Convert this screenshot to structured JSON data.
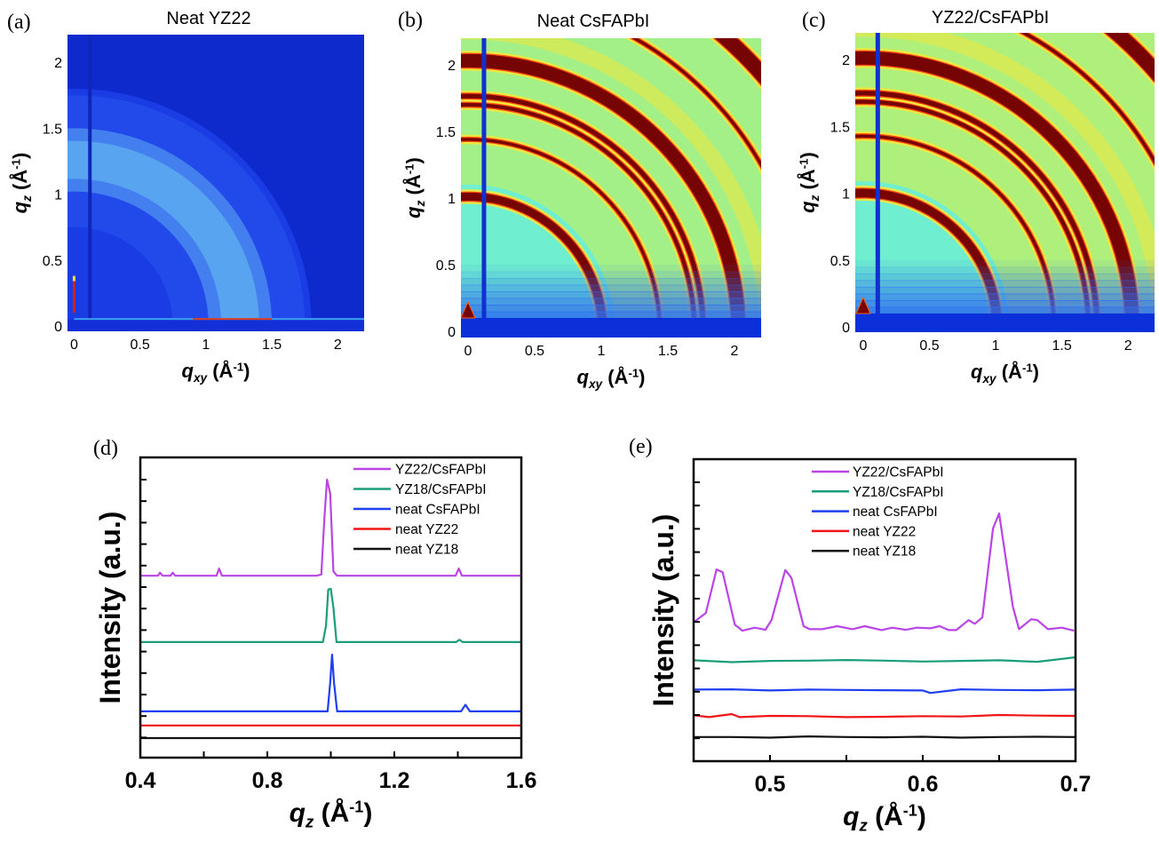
{
  "chart_data": [
    {
      "type": "heatmap",
      "panel_label": "(a)",
      "title": "Neat YZ22",
      "xlabel": {
        "symbol": "q",
        "sub": "xy",
        "unit": "Å",
        "exp": "-1"
      },
      "ylabel": {
        "symbol": "q",
        "sub": "z",
        "unit": "Å",
        "exp": "-1"
      },
      "x_ticks": [
        "0",
        "0.5",
        "1",
        "1.5",
        "2"
      ],
      "y_ticks": [
        "0",
        "0.5",
        "1",
        "1.5",
        "2"
      ],
      "xlim": [
        -0.05,
        2.2
      ],
      "ylim": [
        -0.04,
        2.21
      ],
      "colormap": {
        "background": "#1a3ce4",
        "low": "#0b24c4",
        "diffuse": "#6cc2f2"
      },
      "diffuse_ring_q": [
        1.02,
        1.5
      ],
      "rings": [],
      "beamstop_qxy": 0.12
    },
    {
      "type": "heatmap",
      "panel_label": "(b)",
      "title": "Neat CsFAPbI",
      "xlabel": {
        "symbol": "q",
        "sub": "xy",
        "unit": "Å",
        "exp": "-1"
      },
      "ylabel": {
        "symbol": "q",
        "sub": "z",
        "unit": "Å",
        "exp": "-1"
      },
      "x_ticks": [
        "0",
        "0.5",
        "1",
        "1.5",
        "2"
      ],
      "y_ticks": [
        "0",
        "0.5",
        "1",
        "1.5",
        "2"
      ],
      "xlim": [
        -0.053,
        2.2
      ],
      "ylim": [
        -0.047,
        2.2
      ],
      "colormap": {
        "background": "#6fefcf",
        "outer": "#b4f070",
        "ring": "#760404",
        "edge": "#ff4a10",
        "halo": "#f2e83c",
        "horizon": "#0b2fd8"
      },
      "rings": [
        {
          "q": 1.01,
          "width": 0.06
        },
        {
          "q": 1.44,
          "width": 0.022
        },
        {
          "q": 1.7,
          "width": 0.028
        },
        {
          "q": 1.765,
          "width": 0.034
        },
        {
          "q": 2.03,
          "width": 0.1
        },
        {
          "q": 2.53,
          "width": 0.022
        },
        {
          "q": 2.93,
          "width": 0.11
        }
      ],
      "beamstop_qxy": 0.12
    },
    {
      "type": "heatmap",
      "panel_label": "(c)",
      "title": "YZ22/CsFAPbI",
      "xlabel": {
        "symbol": "q",
        "sub": "xy",
        "unit": "Å",
        "exp": "-1"
      },
      "ylabel": {
        "symbol": "q",
        "sub": "z",
        "unit": "Å",
        "exp": "-1"
      },
      "x_ticks": [
        "0",
        "0.5",
        "1",
        "1.5",
        "2"
      ],
      "y_ticks": [
        "0",
        "0.5",
        "1",
        "1.5",
        "2"
      ],
      "xlim": [
        -0.06,
        2.2
      ],
      "ylim": [
        -0.04,
        2.2
      ],
      "colormap": {
        "background": "#6fefcf",
        "outer": "#c4f060",
        "ring": "#760404",
        "edge": "#ff4a10",
        "halo": "#f2e83c",
        "horizon": "#0b2fd8"
      },
      "rings": [
        {
          "q": 1.01,
          "width": 0.065
        },
        {
          "q": 1.44,
          "width": 0.024
        },
        {
          "q": 1.7,
          "width": 0.03
        },
        {
          "q": 1.765,
          "width": 0.036
        },
        {
          "q": 2.03,
          "width": 0.1
        },
        {
          "q": 2.53,
          "width": 0.024
        },
        {
          "q": 2.93,
          "width": 0.11
        }
      ],
      "beamstop_qxy": 0.11
    },
    {
      "type": "line",
      "panel_label": "(d)",
      "xlabel": {
        "symbol": "q",
        "sub": "z",
        "unit": "Å",
        "exp": "-1"
      },
      "ylabel": "Intensity (a.u.)",
      "x_ticks": [
        "0.4",
        "0.8",
        "1.2",
        "1.6"
      ],
      "xlim": [
        0.4,
        1.6
      ],
      "ylim": [
        0,
        100
      ],
      "legend": "top-right",
      "series": [
        {
          "name": "YZ22/CsFAPbI",
          "color": "#bb44e6",
          "x": [
            0.4,
            0.455,
            0.462,
            0.47,
            0.495,
            0.502,
            0.51,
            0.64,
            0.648,
            0.657,
            0.955,
            0.97,
            0.98,
            0.988,
            0.998,
            1.008,
            1.02,
            1.393,
            1.403,
            1.413,
            1.6
          ],
          "y": [
            60.6,
            60.6,
            61.6,
            60.6,
            60.6,
            61.6,
            60.6,
            60.6,
            63,
            60.6,
            60.6,
            61,
            80,
            92.6,
            88,
            62,
            60.6,
            60.6,
            63,
            60.6,
            60.6
          ]
        },
        {
          "name": "YZ18/CsFAPbI",
          "color": "#1a9e7a",
          "x": [
            0.4,
            0.975,
            0.985,
            0.992,
            1.0,
            1.008,
            1.018,
            1.395,
            1.405,
            1.415,
            1.6
          ],
          "y": [
            38.5,
            38.5,
            44,
            56,
            56.2,
            50,
            38.5,
            38.5,
            39.3,
            38.5,
            38.5
          ]
        },
        {
          "name": "neat CsFAPbI",
          "color": "#1f3ff0",
          "x": [
            0.4,
            0.99,
            0.998,
            1.004,
            1.01,
            1.02,
            1.41,
            1.424,
            1.438,
            1.6
          ],
          "y": [
            15.4,
            15.4,
            25,
            34.3,
            25,
            15.4,
            15.4,
            17.6,
            15.4,
            15.4
          ]
        },
        {
          "name": "neat YZ22",
          "color": "#f01414",
          "x": [
            0.4,
            1.6
          ],
          "y": [
            10.7,
            10.7
          ]
        },
        {
          "name": "neat YZ18",
          "color": "#111111",
          "x": [
            0.4,
            1.6
          ],
          "y": [
            6.5,
            6.5
          ]
        }
      ]
    },
    {
      "type": "line",
      "panel_label": "(e)",
      "xlabel": {
        "symbol": "q",
        "sub": "z",
        "unit": "Å",
        "exp": "-1"
      },
      "ylabel": "Intensity (a.u.)",
      "x_ticks": [
        "0.5",
        "0.6",
        "0.7"
      ],
      "xlim": [
        0.45,
        0.7
      ],
      "ylim": [
        0,
        100
      ],
      "legend": "top-center",
      "series": [
        {
          "name": "YZ22/CsFAPbI",
          "color": "#bb44e6",
          "x": [
            0.45,
            0.458,
            0.465,
            0.469,
            0.477,
            0.482,
            0.49,
            0.497,
            0.501,
            0.51,
            0.514,
            0.522,
            0.526,
            0.534,
            0.544,
            0.554,
            0.562,
            0.573,
            0.58,
            0.589,
            0.596,
            0.605,
            0.611,
            0.617,
            0.622,
            0.63,
            0.634,
            0.639,
            0.646,
            0.65,
            0.659,
            0.663,
            0.671,
            0.675,
            0.682,
            0.691,
            0.699
          ],
          "y": [
            46.0,
            49.1,
            63.5,
            62.6,
            45.2,
            43.2,
            44.2,
            43.5,
            46.7,
            63.3,
            60.7,
            44.7,
            43.7,
            43.7,
            44.7,
            43.7,
            44.7,
            43.4,
            44.2,
            43.5,
            44.2,
            44.0,
            44.7,
            43.4,
            43.4,
            46.7,
            45.5,
            47.6,
            77.1,
            82.0,
            51.1,
            43.7,
            47.0,
            46.7,
            43.7,
            44.2,
            43.2
          ]
        },
        {
          "name": "YZ18/CsFAPbI",
          "color": "#1a9e7a",
          "x": [
            0.45,
            0.475,
            0.5,
            0.525,
            0.55,
            0.575,
            0.6,
            0.625,
            0.65,
            0.675,
            0.7
          ],
          "y": [
            33.4,
            32.8,
            33.2,
            33.3,
            33.5,
            33.3,
            33.0,
            33.2,
            33.4,
            32.9,
            34.4
          ]
        },
        {
          "name": "neat CsFAPbI",
          "color": "#1f3ff0",
          "x": [
            0.45,
            0.475,
            0.5,
            0.525,
            0.55,
            0.575,
            0.6,
            0.605,
            0.625,
            0.65,
            0.675,
            0.7
          ],
          "y": [
            23.7,
            23.8,
            23.4,
            23.7,
            23.6,
            23.5,
            23.4,
            22.6,
            23.8,
            23.6,
            23.5,
            23.7
          ]
        },
        {
          "name": "neat YZ22",
          "color": "#f01414",
          "x": [
            0.45,
            0.46,
            0.475,
            0.48,
            0.5,
            0.525,
            0.55,
            0.575,
            0.6,
            0.625,
            0.65,
            0.675,
            0.7
          ],
          "y": [
            15.2,
            14.6,
            15.6,
            14.6,
            15.0,
            14.9,
            14.6,
            14.7,
            14.9,
            14.8,
            15.3,
            15.1,
            15.0
          ]
        },
        {
          "name": "neat YZ18",
          "color": "#111111",
          "x": [
            0.45,
            0.475,
            0.5,
            0.525,
            0.55,
            0.575,
            0.6,
            0.625,
            0.65,
            0.675,
            0.7
          ],
          "y": [
            8.0,
            8.0,
            7.8,
            8.2,
            8.0,
            7.9,
            8.1,
            7.8,
            8.0,
            8.1,
            8.0
          ]
        }
      ]
    }
  ]
}
